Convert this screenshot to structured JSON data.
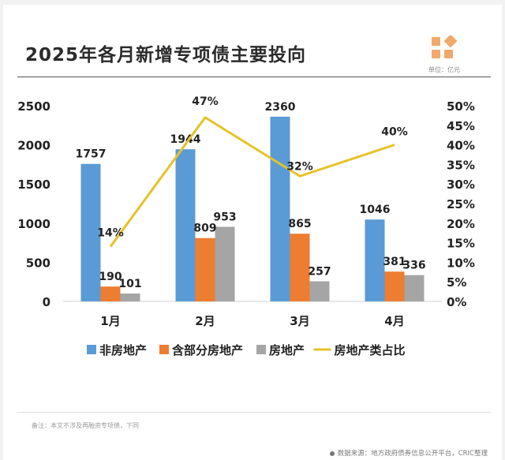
{
  "header": {
    "title": "2025年各月新增专项债主要投向",
    "unit": "单位：亿元"
  },
  "footer": {
    "note": "备注：本文不涉及再融资专项债，下同",
    "source": "数据来源：地方政府债券信息公开平台，CRIC整理"
  },
  "colors": {
    "non_real_estate": "#5b9bd5",
    "partial_real_estate": "#ed7d31",
    "real_estate": "#a5a5a5",
    "ratio_line": "#e6c229",
    "logo": "#f0a86c"
  },
  "chart_data": {
    "type": "bar",
    "categories": [
      "1月",
      "2月",
      "3月",
      "4月"
    ],
    "series": [
      {
        "name": "非房地产",
        "values": [
          1757,
          1944,
          2360,
          1046
        ],
        "labels": [
          "1757",
          "1944",
          "2360",
          "1046"
        ]
      },
      {
        "name": "含部分房地产",
        "values": [
          190,
          809,
          865,
          381
        ],
        "labels": [
          "190",
          "809",
          "865",
          "381"
        ]
      },
      {
        "name": "房地产",
        "values": [
          101,
          953,
          257,
          336
        ],
        "labels": [
          "101",
          "953",
          "257",
          "336"
        ]
      }
    ],
    "line_series": {
      "name": "房地产类占比",
      "axis": "right",
      "values": [
        14,
        47,
        32,
        40
      ],
      "labels": [
        "14%",
        "47%",
        "32%",
        "40%"
      ]
    },
    "ylim": [
      0,
      2500
    ],
    "yticks": [
      "0",
      "500",
      "1000",
      "1500",
      "2000",
      "2500"
    ],
    "y2lim": [
      0,
      50
    ],
    "y2ticks": [
      "0%",
      "5%",
      "10%",
      "15%",
      "20%",
      "25%",
      "30%",
      "35%",
      "40%",
      "45%",
      "50%"
    ],
    "legend_position": "bottom",
    "grid": false
  }
}
